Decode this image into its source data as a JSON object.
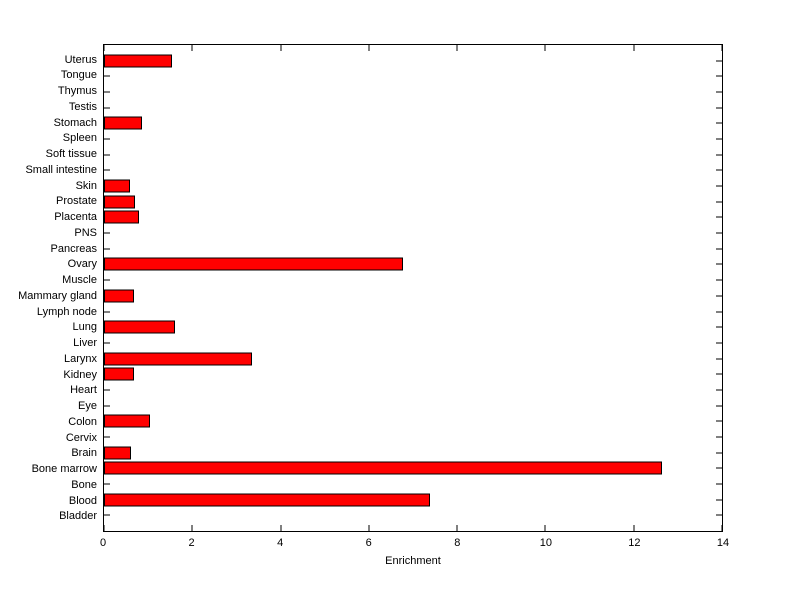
{
  "chart_data": {
    "type": "bar",
    "orientation": "horizontal",
    "title": "",
    "xlabel": "Enrichment",
    "ylabel": "",
    "xlim": [
      0,
      14
    ],
    "xticks": [
      0,
      2,
      4,
      6,
      8,
      10,
      12,
      14
    ],
    "grid": false,
    "legend": null,
    "bar_color": "#ff0000",
    "bar_edge_color": "#000000",
    "axis_color": "#000000",
    "background_color": "#ffffff",
    "categories": [
      "Uterus",
      "Tongue",
      "Thymus",
      "Testis",
      "Stomach",
      "Spleen",
      "Soft tissue",
      "Small intestine",
      "Skin",
      "Prostate",
      "Placenta",
      "PNS",
      "Pancreas",
      "Ovary",
      "Muscle",
      "Mammary gland",
      "Lymph node",
      "Lung",
      "Liver",
      "Larynx",
      "Kidney",
      "Heart",
      "Eye",
      "Colon",
      "Cervix",
      "Brain",
      "Bone marrow",
      "Bone",
      "Blood",
      "Bladder"
    ],
    "values": [
      1.55,
      0,
      0,
      0,
      0.86,
      0,
      0,
      0,
      0.58,
      0.71,
      0.8,
      0,
      0,
      6.78,
      0,
      0.68,
      0,
      1.61,
      0,
      3.36,
      0.68,
      0,
      0,
      1.04,
      0,
      0.61,
      12.65,
      0,
      7.39,
      0
    ]
  }
}
